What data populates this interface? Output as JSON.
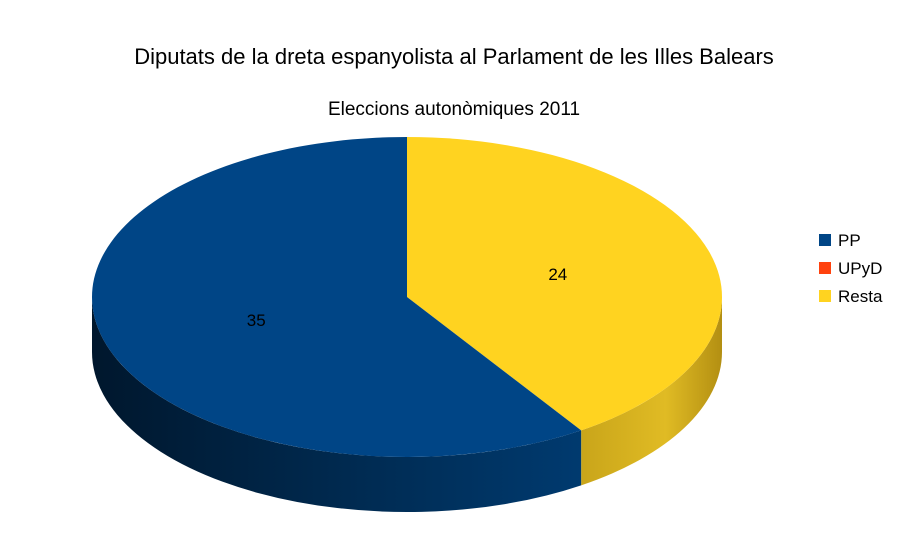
{
  "chart_data": {
    "type": "pie",
    "style": "3d",
    "title": "Diputats de la dreta espanyolista al Parlament de les Illes Balears",
    "subtitle": "Eleccions autonòmiques 2011",
    "legend_position": "right",
    "slices": [
      {
        "name": "PP",
        "value": 35,
        "label": "35",
        "color": "#004586"
      },
      {
        "name": "UPyD",
        "value": 0,
        "label": "",
        "color": "#ff420e"
      },
      {
        "name": "Resta",
        "value": 24,
        "label": "24",
        "color": "#ffd320"
      }
    ]
  }
}
